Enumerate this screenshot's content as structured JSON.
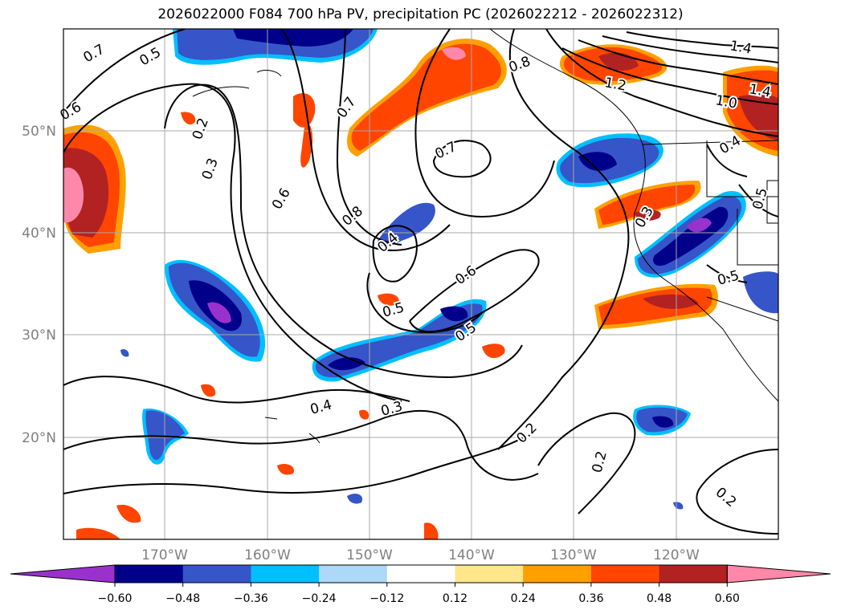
{
  "title": "2026022000 F084 700 hPa PV, precipitation PC (2026022212 - 2026022312)",
  "map": {
    "lat_ticks": [
      "50°N",
      "40°N",
      "30°N",
      "20°N"
    ],
    "lat_values": [
      50,
      40,
      30,
      20
    ],
    "lon_ticks": [
      "170°W",
      "160°W",
      "150°W",
      "140°W",
      "130°W",
      "120°W"
    ],
    "lon_values": [
      -170,
      -160,
      -150,
      -140,
      -130,
      -120
    ],
    "extent": {
      "lon_min": -180,
      "lon_max": -110,
      "lat_min": 10,
      "lat_max": 60
    },
    "gridlines": true,
    "contour_variable": "700 hPa PV",
    "contour_labels": [
      "0.7",
      "0.5",
      "0.6",
      "0.2",
      "0.3",
      "0.6",
      "0.7",
      "0.8",
      "0.4",
      "0.5",
      "0.6",
      "0.7",
      "0.5",
      "0.4",
      "0.3",
      "0.2",
      "0.2",
      "0.2",
      "0.8",
      "1.2",
      "1.4",
      "1.4",
      "1.0",
      "0.5",
      "0.3",
      "0.5",
      "0.4"
    ]
  },
  "colorbar": {
    "ticks": [
      "−0.60",
      "−0.48",
      "−0.36",
      "−0.24",
      "−0.12",
      "0.12",
      "0.24",
      "0.36",
      "0.48",
      "0.60"
    ],
    "colors": [
      "#9932cc",
      "#00008b",
      "#3655c8",
      "#00bfff",
      "#add8f7",
      "#ffffff",
      "#ffe68a",
      "#ffa000",
      "#ff4500",
      "#b22222",
      "#ff88aa"
    ]
  }
}
